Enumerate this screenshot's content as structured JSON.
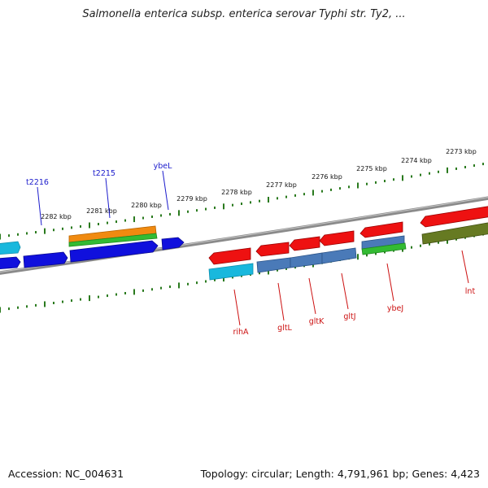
{
  "header": {
    "title": "Salmonella enterica subsp. enterica serovar Typhi str. Ty2, ..."
  },
  "footer": {
    "accession": "Accession: NC_004631",
    "topology": "Topology: circular; Length: 4,791,961 bp; Genes: 4,423"
  },
  "colors": {
    "backbone": "#8a8a8a",
    "tick": "#2a7a1e",
    "forward_label": "#1c1ccc",
    "reverse_label": "#cc1111",
    "red": "#ee1111",
    "blue": "#1010dd",
    "cyan": "#19b8dd",
    "steel": "#4a7ab8",
    "orange": "#f08a10",
    "green": "#33bb33",
    "olive": "#667a22"
  },
  "ruler": {
    "labels": [
      "2282 kbp",
      "2281 kbp",
      "2280 kbp",
      "2279 kbp",
      "2278 kbp",
      "2277 kbp",
      "2276 kbp",
      "2275 kbp",
      "2274 kbp",
      "2273 kbp"
    ]
  },
  "genes": {
    "forward": [
      "t2216",
      "t2215",
      "ybeL"
    ],
    "reverse": [
      "rihA",
      "gltL",
      "gltK",
      "gltJ",
      "ybeJ",
      "lnt"
    ]
  }
}
